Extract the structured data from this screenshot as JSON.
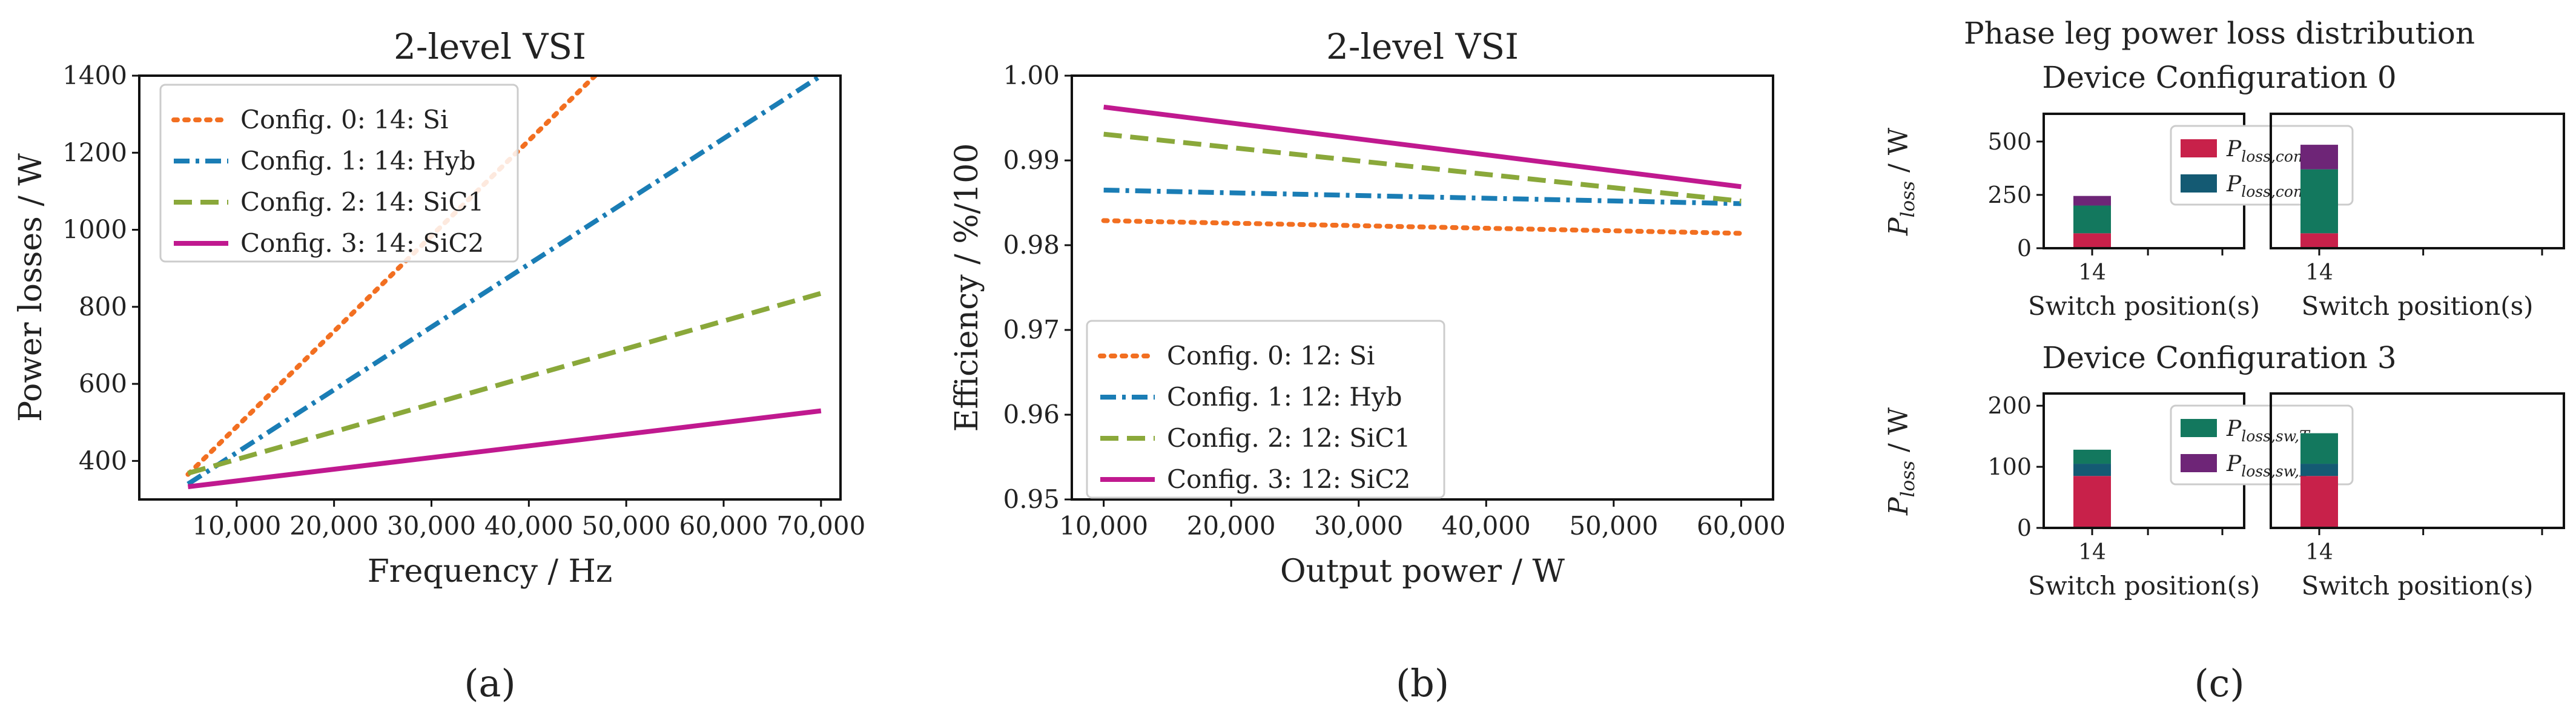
{
  "colors": {
    "orange": "#F26F21",
    "blue": "#1A7DB5",
    "green": "#8AA83A",
    "magenta": "#C0198F",
    "cond_t": "#C8214A",
    "cond_d": "#145A73",
    "sw_t": "#13785E",
    "sw_d": "#6E2577"
  },
  "chart_data": [
    {
      "id": "a",
      "type": "line",
      "title": "2-level VSI",
      "xlabel": "Frequency / Hz",
      "ylabel": "Power losses / W",
      "xlim": [
        0,
        72000
      ],
      "ylim": [
        300,
        1400
      ],
      "xticks": [
        10000,
        20000,
        30000,
        40000,
        50000,
        60000,
        70000
      ],
      "xtick_labels": [
        "10,000",
        "20,000",
        "30,000",
        "40,000",
        "50,000",
        "60,000",
        "70,000"
      ],
      "yticks": [
        400,
        600,
        800,
        1000,
        1200,
        1400
      ],
      "ytick_labels": [
        "400",
        "600",
        "800",
        "1000",
        "1200",
        "1400"
      ],
      "legend_position": "top-left",
      "series": [
        {
          "name": "Config. 0: 14: Si",
          "color": "orange",
          "style": "dotted",
          "x": [
            5000,
            46800
          ],
          "y": [
            365,
            1400
          ]
        },
        {
          "name": "Config. 1: 14: Hyb",
          "color": "blue",
          "style": "dashdot",
          "x": [
            5000,
            70000
          ],
          "y": [
            340,
            1400
          ]
        },
        {
          "name": "Config. 2: 14: SiC1",
          "color": "green",
          "style": "dashed",
          "x": [
            5000,
            70000
          ],
          "y": [
            368,
            835
          ]
        },
        {
          "name": "Config. 3: 14: SiC2",
          "color": "magenta",
          "style": "solid",
          "x": [
            5000,
            70000
          ],
          "y": [
            333,
            530
          ]
        }
      ],
      "caption": "(a)"
    },
    {
      "id": "b",
      "type": "line",
      "title": "2-level VSI",
      "xlabel": "Output power / W",
      "ylabel": "Efficiency / %/100",
      "xlim": [
        7500,
        62500
      ],
      "ylim": [
        0.95,
        1.0
      ],
      "xticks": [
        10000,
        20000,
        30000,
        40000,
        50000,
        60000
      ],
      "xtick_labels": [
        "10,000",
        "20,000",
        "30,000",
        "40,000",
        "50,000",
        "60,000"
      ],
      "yticks": [
        0.95,
        0.96,
        0.97,
        0.98,
        0.99,
        1.0
      ],
      "ytick_labels": [
        "0.95",
        "0.96",
        "0.97",
        "0.98",
        "0.99",
        "1.00"
      ],
      "legend_position": "bottom-left",
      "series": [
        {
          "name": "Config. 0: 12: Si",
          "color": "orange",
          "style": "dotted",
          "x": [
            10000,
            60000
          ],
          "y": [
            0.9829,
            0.9814
          ]
        },
        {
          "name": "Config. 1: 12: Hyb",
          "color": "blue",
          "style": "dashdot",
          "x": [
            10000,
            60000
          ],
          "y": [
            0.9865,
            0.9849
          ]
        },
        {
          "name": "Config. 2: 12: SiC1",
          "color": "green",
          "style": "dashed",
          "x": [
            10000,
            60000
          ],
          "y": [
            0.9931,
            0.9852
          ]
        },
        {
          "name": "Config. 3: 12: SiC2",
          "color": "magenta",
          "style": "solid",
          "x": [
            10000,
            60000
          ],
          "y": [
            0.9963,
            0.9869
          ]
        }
      ],
      "caption": "(b)"
    },
    {
      "id": "c",
      "type": "bar",
      "title": "Phase leg power loss distribution",
      "caption": "(c)",
      "groups": [
        {
          "subtitle": "Device Configuration 0",
          "ylabel_main": "P",
          "ylabel_sub": "loss",
          "ylabel_unit": " / W",
          "ylim": [
            0,
            630
          ],
          "yticks": [
            0,
            250,
            500
          ],
          "legend": [
            {
              "main": "P",
              "sub": "loss,cond,T",
              "color": "cond_t"
            },
            {
              "main": "P",
              "sub": "loss,cond,D",
              "color": "cond_d"
            }
          ],
          "panels": [
            {
              "category": "14",
              "xlabel": "Switch position(s)",
              "show_yaxis": true,
              "show_legend": true,
              "segments": [
                {
                  "name": "cond,T",
                  "value": 70,
                  "color": "cond_t"
                },
                {
                  "name": "sw,T",
                  "value": 130,
                  "color": "sw_t"
                },
                {
                  "name": "cond,D",
                  "value": 0,
                  "color": "cond_d"
                },
                {
                  "name": "sw,D",
                  "value": 45,
                  "color": "sw_d"
                }
              ]
            },
            {
              "category": "14",
              "xlabel": "Switch position(s)",
              "show_yaxis": false,
              "show_legend": false,
              "segments": [
                {
                  "name": "cond,T",
                  "value": 70,
                  "color": "cond_t"
                },
                {
                  "name": "sw,T",
                  "value": 300,
                  "color": "sw_t"
                },
                {
                  "name": "cond,D",
                  "value": 0,
                  "color": "cond_d"
                },
                {
                  "name": "sw,D",
                  "value": 115,
                  "color": "sw_d"
                }
              ]
            }
          ]
        },
        {
          "subtitle": "Device Configuration 3",
          "ylabel_main": "P",
          "ylabel_sub": "loss",
          "ylabel_unit": " / W",
          "ylim": [
            0,
            220
          ],
          "yticks": [
            0,
            100,
            200
          ],
          "legend": [
            {
              "main": "P",
              "sub": "loss,sw,T",
              "color": "sw_t"
            },
            {
              "main": "P",
              "sub": "loss,sw,D",
              "color": "sw_d"
            }
          ],
          "panels": [
            {
              "category": "14",
              "xlabel": "Switch position(s)",
              "show_yaxis": true,
              "show_legend": true,
              "segments": [
                {
                  "name": "cond,T",
                  "value": 85,
                  "color": "cond_t"
                },
                {
                  "name": "cond,D",
                  "value": 20,
                  "color": "cond_d"
                },
                {
                  "name": "sw,T",
                  "value": 23,
                  "color": "sw_t"
                }
              ]
            },
            {
              "category": "14",
              "xlabel": "Switch position(s)",
              "show_yaxis": false,
              "show_legend": false,
              "segments": [
                {
                  "name": "cond,T",
                  "value": 85,
                  "color": "cond_t"
                },
                {
                  "name": "cond,D",
                  "value": 20,
                  "color": "cond_d"
                },
                {
                  "name": "sw,T",
                  "value": 50,
                  "color": "sw_t"
                }
              ]
            }
          ]
        }
      ]
    }
  ]
}
